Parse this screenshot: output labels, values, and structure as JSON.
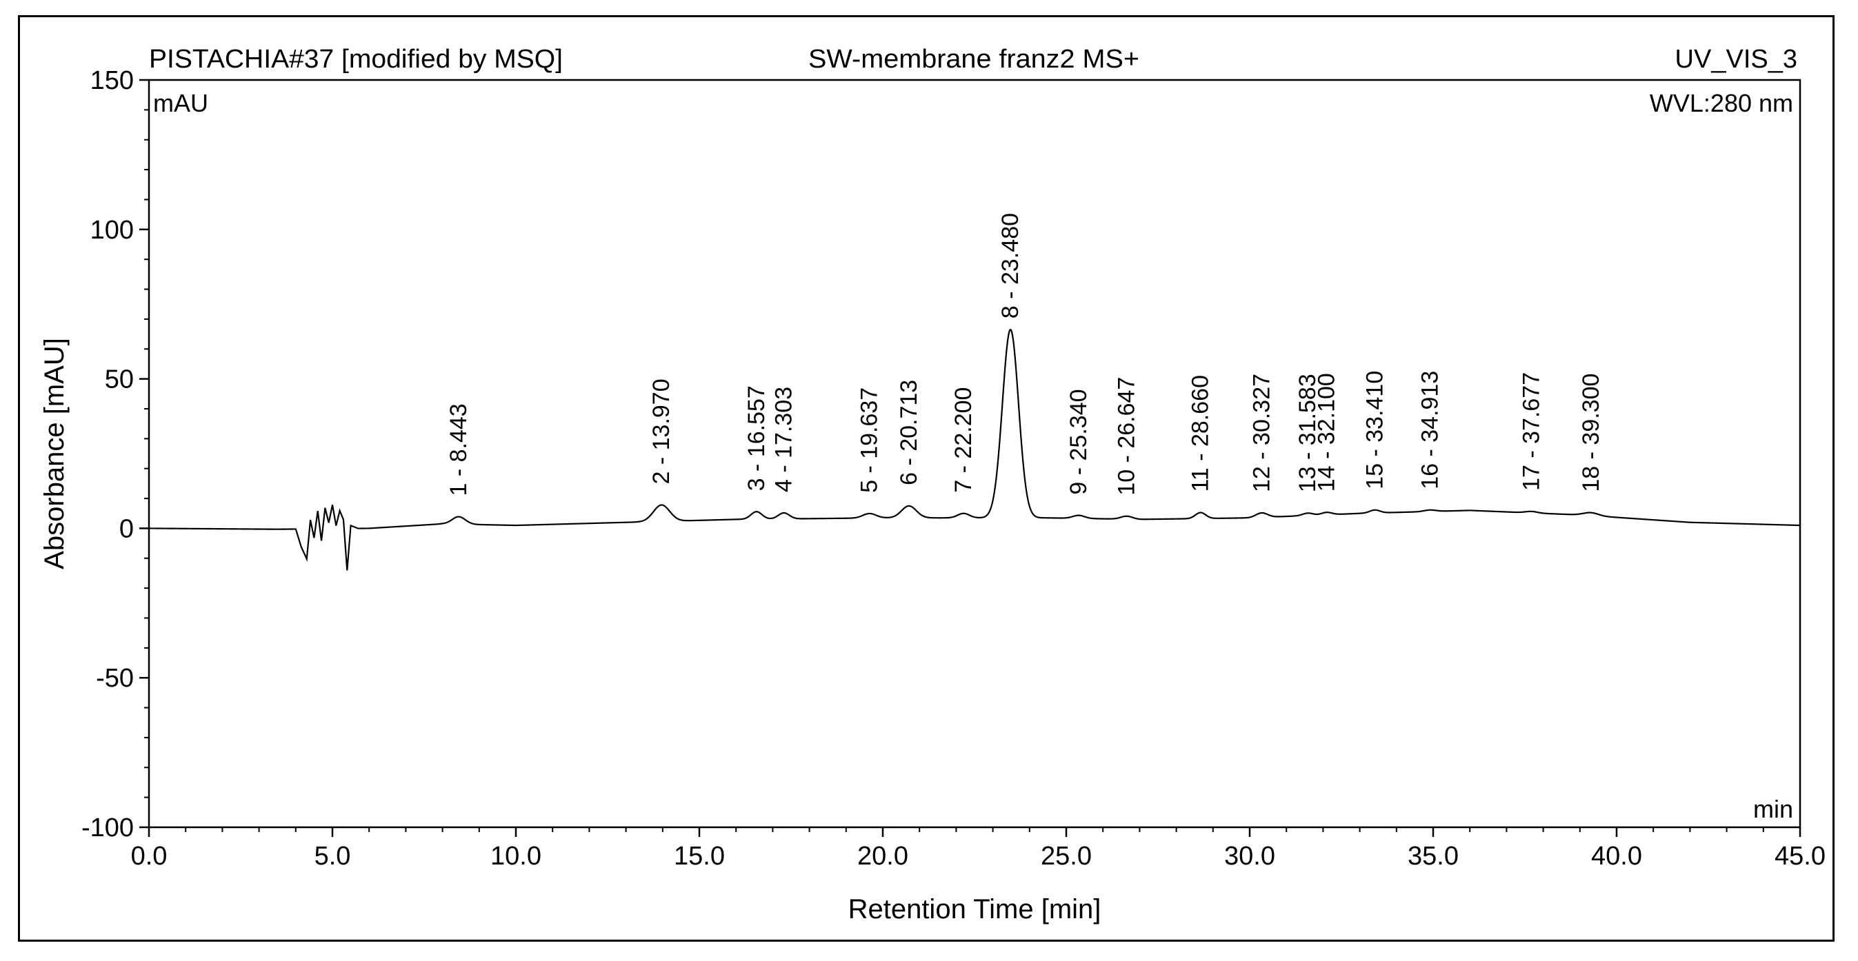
{
  "chart_data": {
    "type": "line",
    "sample_name": "PISTACHIA#37 [modified by MSQ]",
    "title": "SW-membrane franz2 MS+",
    "channel": "UV_VIS_3",
    "wavelength": "WVL:280 nm",
    "y_unit": "mAU",
    "x_unit": "min",
    "xlabel": "Retention Time [min]",
    "ylabel": "Absorbance [mAU]",
    "xlim": [
      0,
      45
    ],
    "ylim": [
      -100,
      150
    ],
    "x_ticks": [
      "0.0",
      "5.0",
      "10.0",
      "15.0",
      "20.0",
      "25.0",
      "30.0",
      "35.0",
      "40.0",
      "45.0"
    ],
    "y_ticks": [
      "150",
      "100",
      "50",
      "0",
      "-50",
      "-100"
    ],
    "baseline": [
      [
        0,
        0
      ],
      [
        3.5,
        -0.3
      ],
      [
        6.0,
        0
      ],
      [
        8.0,
        1.5
      ],
      [
        10.0,
        1.0
      ],
      [
        13.0,
        2.0
      ],
      [
        16.0,
        3.0
      ],
      [
        20.0,
        3.5
      ],
      [
        23.0,
        3.5
      ],
      [
        24.5,
        3.5
      ],
      [
        27.0,
        3.0
      ],
      [
        30.0,
        3.5
      ],
      [
        33.0,
        5.0
      ],
      [
        36.0,
        6.0
      ],
      [
        39.0,
        4.5
      ],
      [
        42.0,
        2.0
      ],
      [
        45.0,
        1.0
      ]
    ],
    "noise": [
      [
        4.0,
        0
      ],
      [
        4.15,
        -6
      ],
      [
        4.3,
        -10
      ],
      [
        4.4,
        3
      ],
      [
        4.5,
        -3
      ],
      [
        4.6,
        6
      ],
      [
        4.7,
        -4
      ],
      [
        4.8,
        7
      ],
      [
        4.9,
        2
      ],
      [
        5.0,
        8
      ],
      [
        5.1,
        1
      ],
      [
        5.2,
        6
      ],
      [
        5.3,
        3
      ],
      [
        5.4,
        -14
      ],
      [
        5.5,
        1
      ],
      [
        5.7,
        0
      ]
    ],
    "peaks": [
      {
        "number": 1,
        "label": "1 - 8.443",
        "rt": 8.443,
        "height": 2.5,
        "width": 0.18
      },
      {
        "number": 2,
        "label": "2 - 13.970",
        "rt": 13.97,
        "height": 5.5,
        "width": 0.22
      },
      {
        "number": 3,
        "label": "3 - 16.557",
        "rt": 16.557,
        "height": 2.5,
        "width": 0.15
      },
      {
        "number": 4,
        "label": "4 - 17.303",
        "rt": 17.303,
        "height": 2.0,
        "width": 0.15
      },
      {
        "number": 5,
        "label": "5 - 19.637",
        "rt": 19.637,
        "height": 1.5,
        "width": 0.18
      },
      {
        "number": 6,
        "label": "6 - 20.713",
        "rt": 20.713,
        "height": 4.0,
        "width": 0.2
      },
      {
        "number": 7,
        "label": "7 - 22.200",
        "rt": 22.2,
        "height": 1.5,
        "width": 0.16
      },
      {
        "number": 8,
        "label": "8 - 23.480",
        "rt": 23.48,
        "height": 63.0,
        "width": 0.22
      },
      {
        "number": 9,
        "label": "9 - 25.340",
        "rt": 25.34,
        "height": 1.0,
        "width": 0.16
      },
      {
        "number": 10,
        "label": "10 - 26.647",
        "rt": 26.647,
        "height": 1.0,
        "width": 0.16
      },
      {
        "number": 11,
        "label": "11 - 28.660",
        "rt": 28.66,
        "height": 2.0,
        "width": 0.14
      },
      {
        "number": 12,
        "label": "12 - 30.327",
        "rt": 30.327,
        "height": 1.5,
        "width": 0.16
      },
      {
        "number": 13,
        "label": "13 - 31.583",
        "rt": 31.583,
        "height": 0.8,
        "width": 0.14
      },
      {
        "number": 14,
        "label": "14 - 32.100",
        "rt": 32.1,
        "height": 0.8,
        "width": 0.14
      },
      {
        "number": 15,
        "label": "15 - 33.410",
        "rt": 33.41,
        "height": 1.0,
        "width": 0.14
      },
      {
        "number": 16,
        "label": "16 - 34.913",
        "rt": 34.913,
        "height": 0.5,
        "width": 0.16
      },
      {
        "number": 17,
        "label": "17 - 37.677",
        "rt": 37.677,
        "height": 0.5,
        "width": 0.16
      },
      {
        "number": 18,
        "label": "18 - 39.300",
        "rt": 39.3,
        "height": 1.0,
        "width": 0.2
      }
    ],
    "line_color": "#000000"
  }
}
